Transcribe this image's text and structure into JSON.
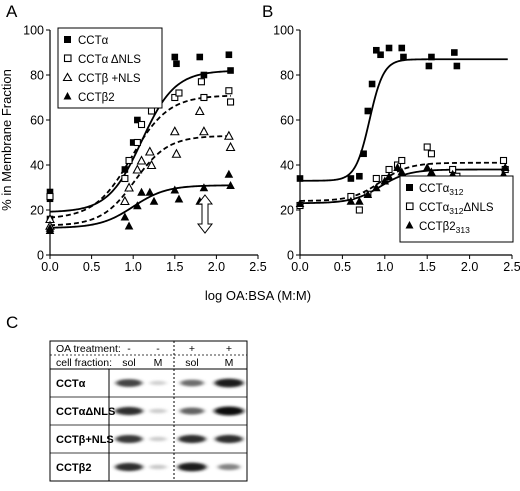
{
  "panel_a": {
    "label": "A"
  },
  "panel_b": {
    "label": "B"
  },
  "panel_c": {
    "label": "C"
  },
  "shared": {
    "ylabel": "% in Membrane Fraction",
    "xlabel": "log OA:BSA (M:M)"
  },
  "chart_data": [
    {
      "panel": "A",
      "type": "scatter",
      "xlim": [
        0,
        2.5
      ],
      "ylim": [
        0,
        100
      ],
      "xticks": [
        "0.0",
        "0.5",
        "1.0",
        "1.5",
        "2.0",
        "2.5"
      ],
      "yticks": [
        "0",
        "20",
        "40",
        "60",
        "80",
        "100"
      ],
      "ylabel": "% in Membrane Fraction",
      "xlabel": "log OA:BSA (M:M)",
      "legend_position": "top-left",
      "annotation": "double-headed vertical arrow at x = 1.85",
      "series": [
        {
          "name": "CCTα",
          "marker": "square-filled",
          "line": "solid",
          "points": [
            [
              0,
              28
            ],
            [
              0,
              25
            ],
            [
              0,
              16
            ],
            [
              0.9,
              38
            ],
            [
              1.0,
              50
            ],
            [
              1.05,
              60
            ],
            [
              1.1,
              70
            ],
            [
              1.2,
              75
            ],
            [
              1.23,
              77
            ],
            [
              1.5,
              88
            ],
            [
              1.52,
              85
            ],
            [
              1.8,
              88
            ],
            [
              1.85,
              80
            ],
            [
              2.15,
              89
            ],
            [
              2.17,
              82
            ]
          ],
          "fit": {
            "bottom": 19,
            "top": 82,
            "x50": 1.1,
            "slope": 5.0
          }
        },
        {
          "name": "CCTα ΔNLS",
          "marker": "square-open",
          "line": "dashed",
          "points": [
            [
              0,
              26
            ],
            [
              0.9,
              34
            ],
            [
              0.95,
              42
            ],
            [
              1.05,
              50
            ],
            [
              1.1,
              58
            ],
            [
              1.2,
              68
            ],
            [
              1.22,
              64
            ],
            [
              1.5,
              70
            ],
            [
              1.55,
              72
            ],
            [
              1.82,
              77
            ],
            [
              1.85,
              70
            ],
            [
              2.15,
              73
            ],
            [
              2.17,
              68
            ]
          ],
          "fit": {
            "bottom": 16,
            "top": 71,
            "x50": 0.98,
            "slope": 4.5
          }
        },
        {
          "name": "CCTβ +NLS",
          "marker": "triangle-open",
          "line": "dashed",
          "points": [
            [
              0,
              16
            ],
            [
              0,
              13
            ],
            [
              0.9,
              24
            ],
            [
              0.95,
              30
            ],
            [
              1.05,
              38
            ],
            [
              1.1,
              42
            ],
            [
              1.2,
              46
            ],
            [
              1.22,
              40
            ],
            [
              1.5,
              55
            ],
            [
              1.52,
              45
            ],
            [
              1.8,
              64
            ],
            [
              1.85,
              55
            ],
            [
              2.15,
              53
            ],
            [
              2.17,
              48
            ]
          ],
          "fit": {
            "bottom": 13,
            "top": 53,
            "x50": 1.02,
            "slope": 5.0
          }
        },
        {
          "name": "CCTβ2",
          "marker": "triangle-filled",
          "line": "solid",
          "points": [
            [
              0,
              12
            ],
            [
              0,
              11
            ],
            [
              0.9,
              17
            ],
            [
              0.95,
              13
            ],
            [
              1.05,
              22
            ],
            [
              1.1,
              28
            ],
            [
              1.2,
              28
            ],
            [
              1.25,
              24
            ],
            [
              1.5,
              29
            ],
            [
              1.55,
              25
            ],
            [
              1.8,
              24
            ],
            [
              1.85,
              30
            ],
            [
              2.15,
              36
            ],
            [
              2.17,
              31
            ]
          ],
          "fit": {
            "bottom": 12,
            "top": 31,
            "x50": 1.0,
            "slope": 5.0
          }
        }
      ]
    },
    {
      "panel": "B",
      "type": "scatter",
      "xlim": [
        0,
        2.5
      ],
      "ylim": [
        0,
        100
      ],
      "xticks": [
        "0.0",
        "0.5",
        "1.0",
        "1.5",
        "2.0",
        "2.5"
      ],
      "yticks": [
        "0",
        "20",
        "40",
        "60",
        "80",
        "100"
      ],
      "xlabel": "log OA:BSA (M:M)",
      "legend_position": "bottom-right",
      "series": [
        {
          "name": "CCTα",
          "subscript": "312",
          "marker": "square-filled",
          "line": "solid",
          "points": [
            [
              0,
              34
            ],
            [
              0.6,
              34
            ],
            [
              0.7,
              35
            ],
            [
              0.75,
              45
            ],
            [
              0.8,
              64
            ],
            [
              0.85,
              76
            ],
            [
              0.9,
              91
            ],
            [
              0.95,
              89
            ],
            [
              1.05,
              92
            ],
            [
              1.2,
              92
            ],
            [
              1.22,
              88
            ],
            [
              1.52,
              84
            ],
            [
              1.55,
              88
            ],
            [
              1.82,
              90
            ],
            [
              1.85,
              84
            ]
          ],
          "fit": {
            "bottom": 33,
            "top": 87,
            "x50": 0.82,
            "slope": 12.0
          }
        },
        {
          "name": "CCTα",
          "subscript": "312",
          "suffix": "ΔNLS",
          "marker": "square-open",
          "line": "dashed",
          "points": [
            [
              0,
              22
            ],
            [
              0.6,
              26
            ],
            [
              0.7,
              20
            ],
            [
              0.8,
              27
            ],
            [
              0.9,
              34
            ],
            [
              1.0,
              34
            ],
            [
              1.05,
              38
            ],
            [
              1.15,
              40
            ],
            [
              1.2,
              42
            ],
            [
              1.5,
              48
            ],
            [
              1.55,
              45
            ],
            [
              1.8,
              38
            ],
            [
              1.85,
              35
            ],
            [
              2.4,
              42
            ],
            [
              2.42,
              38
            ]
          ],
          "fit": {
            "bottom": 24,
            "top": 41,
            "x50": 0.95,
            "slope": 6.0
          }
        },
        {
          "name": "CCTβ2",
          "subscript": "313",
          "marker": "triangle-filled",
          "line": "solid",
          "points": [
            [
              0,
              23
            ],
            [
              0.6,
              24
            ],
            [
              0.7,
              24
            ],
            [
              0.8,
              27
            ],
            [
              0.9,
              30
            ],
            [
              1.0,
              33
            ],
            [
              1.05,
              35
            ],
            [
              1.15,
              39
            ],
            [
              1.2,
              37
            ],
            [
              1.5,
              39
            ],
            [
              1.55,
              37
            ],
            [
              1.8,
              36
            ],
            [
              1.85,
              32
            ],
            [
              2.4,
              36
            ],
            [
              2.42,
              39
            ]
          ],
          "fit": {
            "bottom": 23,
            "top": 38,
            "x50": 0.95,
            "slope": 6.0
          }
        }
      ]
    }
  ],
  "blot": {
    "header_rows": [
      {
        "label": "OA treatment:",
        "cells": [
          "-",
          "-",
          "+",
          "+"
        ]
      },
      {
        "label": "cell fraction:",
        "cells": [
          "sol",
          "M",
          "sol",
          "M"
        ]
      }
    ],
    "rows": [
      {
        "label": "CCTα",
        "intensity": [
          0.75,
          0.08,
          0.55,
          0.95
        ]
      },
      {
        "label": "CCTαΔNLS",
        "intensity": [
          0.85,
          0.1,
          0.6,
          1.0
        ]
      },
      {
        "label": "CCTβ+NLS",
        "intensity": [
          0.8,
          0.1,
          0.85,
          0.85
        ]
      },
      {
        "label": "CCTβ2",
        "intensity": [
          0.85,
          0.12,
          0.95,
          0.45
        ]
      }
    ]
  }
}
